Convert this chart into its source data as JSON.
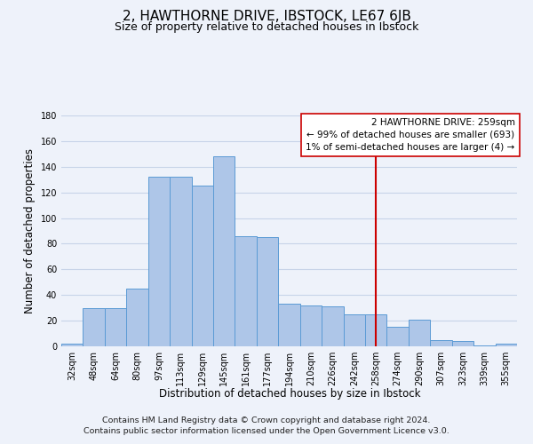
{
  "title": "2, HAWTHORNE DRIVE, IBSTOCK, LE67 6JB",
  "subtitle": "Size of property relative to detached houses in Ibstock",
  "xlabel": "Distribution of detached houses by size in Ibstock",
  "ylabel": "Number of detached properties",
  "footer_line1": "Contains HM Land Registry data © Crown copyright and database right 2024.",
  "footer_line2": "Contains public sector information licensed under the Open Government Licence v3.0.",
  "bar_labels": [
    "32sqm",
    "48sqm",
    "64sqm",
    "80sqm",
    "97sqm",
    "113sqm",
    "129sqm",
    "145sqm",
    "161sqm",
    "177sqm",
    "194sqm",
    "210sqm",
    "226sqm",
    "242sqm",
    "258sqm",
    "274sqm",
    "290sqm",
    "307sqm",
    "323sqm",
    "339sqm",
    "355sqm"
  ],
  "bar_values": [
    2,
    30,
    30,
    45,
    132,
    132,
    125,
    148,
    86,
    85,
    33,
    32,
    31,
    25,
    25,
    15,
    21,
    5,
    4,
    1,
    2
  ],
  "bar_color": "#aec6e8",
  "bar_edge_color": "#5b9bd5",
  "vline_x_index": 14,
  "vline_color": "#cc0000",
  "annotation_title": "2 HAWTHORNE DRIVE: 259sqm",
  "annotation_line1": "← 99% of detached houses are smaller (693)",
  "annotation_line2": "1% of semi-detached houses are larger (4) →",
  "annotation_box_color": "#ffffff",
  "annotation_box_edge": "#cc0000",
  "ylim": [
    0,
    180
  ],
  "yticks": [
    0,
    20,
    40,
    60,
    80,
    100,
    120,
    140,
    160,
    180
  ],
  "grid_color": "#c8d4e8",
  "background_color": "#eef2fa",
  "title_fontsize": 11,
  "subtitle_fontsize": 9,
  "axis_label_fontsize": 8.5,
  "tick_fontsize": 7,
  "footer_fontsize": 6.8,
  "annotation_fontsize": 7.5
}
